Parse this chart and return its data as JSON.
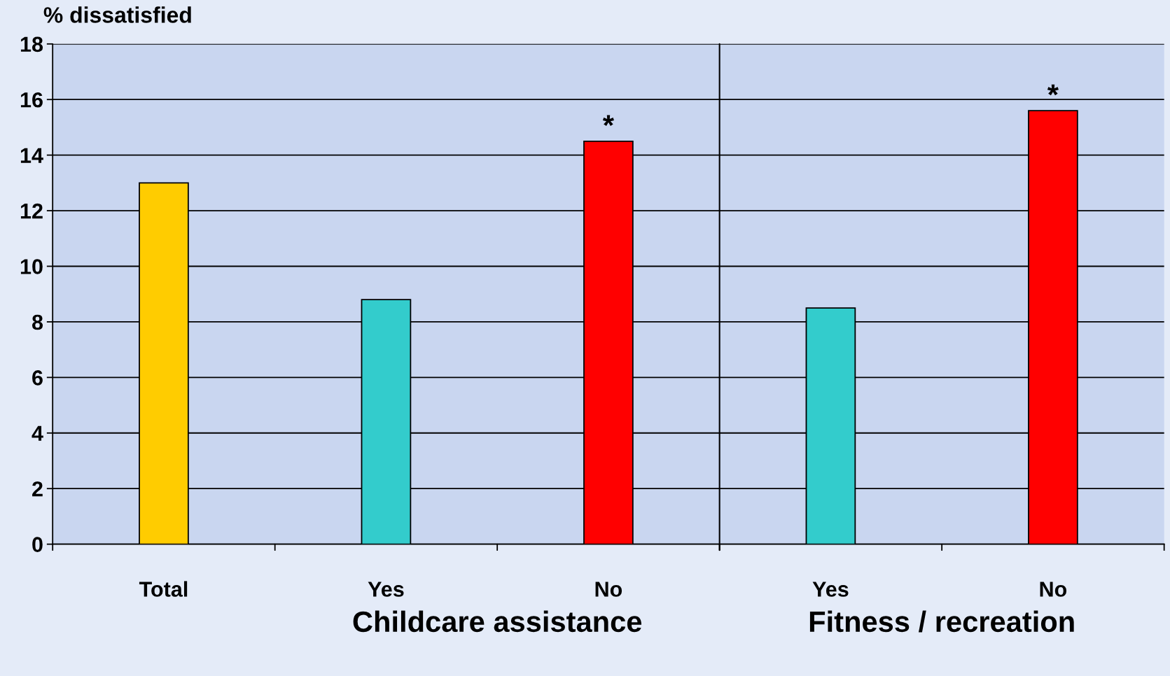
{
  "chart_data": {
    "type": "bar",
    "ylabel": "% dissatisfied",
    "categories": [
      "Total",
      "Yes",
      "No",
      "Yes",
      "No"
    ],
    "values": [
      13.0,
      8.8,
      14.5,
      8.5,
      15.6
    ],
    "colors": [
      "#ffcc00",
      "#33cccc",
      "#ff0000",
      "#33cccc",
      "#ff0000"
    ],
    "ylim": [
      0,
      18
    ],
    "yticks": [
      0,
      2,
      4,
      6,
      8,
      10,
      12,
      14,
      16,
      18
    ],
    "grid": "y",
    "value_labels": [
      null,
      null,
      "*",
      null,
      "*"
    ],
    "annotations": [
      "Childcare assistance",
      "Fitness / recreation"
    ]
  }
}
